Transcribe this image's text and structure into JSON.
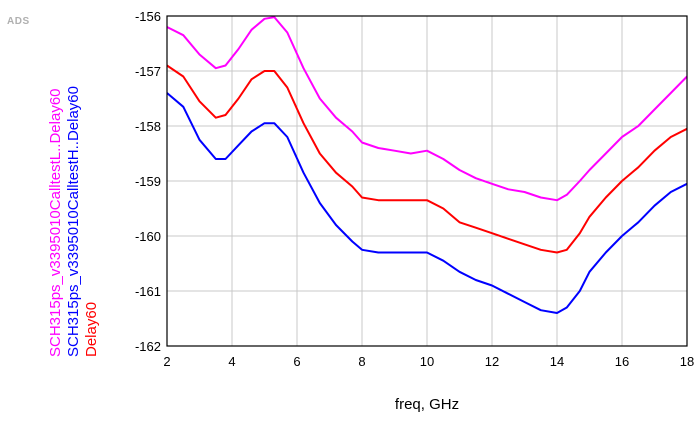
{
  "app_label": "ADS",
  "chart_data": {
    "type": "line",
    "title": "",
    "xlabel": "freq, GHz",
    "ylabel": "",
    "xlim": [
      2,
      18
    ],
    "ylim": [
      -162,
      -156
    ],
    "xticks": [
      2,
      4,
      6,
      8,
      10,
      12,
      14,
      16,
      18
    ],
    "yticks": [
      -162,
      -161,
      -160,
      -159,
      -158,
      -157,
      -156
    ],
    "grid": true,
    "legend_placement": "left-vertical",
    "series": [
      {
        "name": "SCH315ps_v3395010CalltestL..Delay60",
        "color": "#ff00ff",
        "x": [
          2,
          2.5,
          3,
          3.5,
          3.8,
          4.2,
          4.6,
          5,
          5.3,
          5.7,
          6.2,
          6.7,
          7.2,
          7.7,
          8,
          8.5,
          9,
          9.5,
          10,
          10.5,
          11,
          11.5,
          12,
          12.5,
          13,
          13.5,
          14,
          14.3,
          14.7,
          15,
          15.5,
          16,
          16.5,
          17,
          17.5,
          18
        ],
        "y": [
          -156.2,
          -156.35,
          -156.7,
          -156.95,
          -156.9,
          -156.6,
          -156.25,
          -156.05,
          -156.02,
          -156.3,
          -156.95,
          -157.5,
          -157.85,
          -158.1,
          -158.3,
          -158.4,
          -158.45,
          -158.5,
          -158.45,
          -158.6,
          -158.8,
          -158.95,
          -159.05,
          -159.15,
          -159.2,
          -159.3,
          -159.35,
          -159.25,
          -159.0,
          -158.8,
          -158.5,
          -158.2,
          -158.0,
          -157.7,
          -157.4,
          -157.1
        ]
      },
      {
        "name": "SCH315ps_v3395010CalltestH..Delay60",
        "color": "#0000ff",
        "x": [
          2,
          2.5,
          3,
          3.5,
          3.8,
          4.2,
          4.6,
          5,
          5.3,
          5.7,
          6.2,
          6.7,
          7.2,
          7.7,
          8,
          8.5,
          9,
          9.5,
          10,
          10.5,
          11,
          11.5,
          12,
          12.5,
          13,
          13.5,
          14,
          14.3,
          14.7,
          15,
          15.5,
          16,
          16.5,
          17,
          17.5,
          18
        ],
        "y": [
          -157.4,
          -157.65,
          -158.25,
          -158.6,
          -158.6,
          -158.35,
          -158.1,
          -157.95,
          -157.95,
          -158.2,
          -158.85,
          -159.4,
          -159.8,
          -160.1,
          -160.25,
          -160.3,
          -160.3,
          -160.3,
          -160.3,
          -160.45,
          -160.65,
          -160.8,
          -160.9,
          -161.05,
          -161.2,
          -161.35,
          -161.4,
          -161.3,
          -161.0,
          -160.65,
          -160.3,
          -160.0,
          -159.75,
          -159.45,
          -159.2,
          -159.05
        ]
      },
      {
        "name": "Delay60",
        "color": "#ff0000",
        "x": [
          2,
          2.5,
          3,
          3.5,
          3.8,
          4.2,
          4.6,
          5,
          5.3,
          5.7,
          6.2,
          6.7,
          7.2,
          7.7,
          8,
          8.5,
          9,
          9.5,
          10,
          10.5,
          11,
          11.5,
          12,
          12.5,
          13,
          13.5,
          14,
          14.3,
          14.7,
          15,
          15.5,
          16,
          16.5,
          17,
          17.5,
          18
        ],
        "y": [
          -156.9,
          -157.1,
          -157.55,
          -157.85,
          -157.8,
          -157.5,
          -157.15,
          -157.0,
          -157.0,
          -157.3,
          -157.95,
          -158.5,
          -158.85,
          -159.1,
          -159.3,
          -159.35,
          -159.35,
          -159.35,
          -159.35,
          -159.5,
          -159.75,
          -159.85,
          -159.95,
          -160.05,
          -160.15,
          -160.25,
          -160.3,
          -160.25,
          -159.95,
          -159.65,
          -159.3,
          -159.0,
          -158.75,
          -158.45,
          -158.2,
          -158.05
        ]
      }
    ]
  }
}
